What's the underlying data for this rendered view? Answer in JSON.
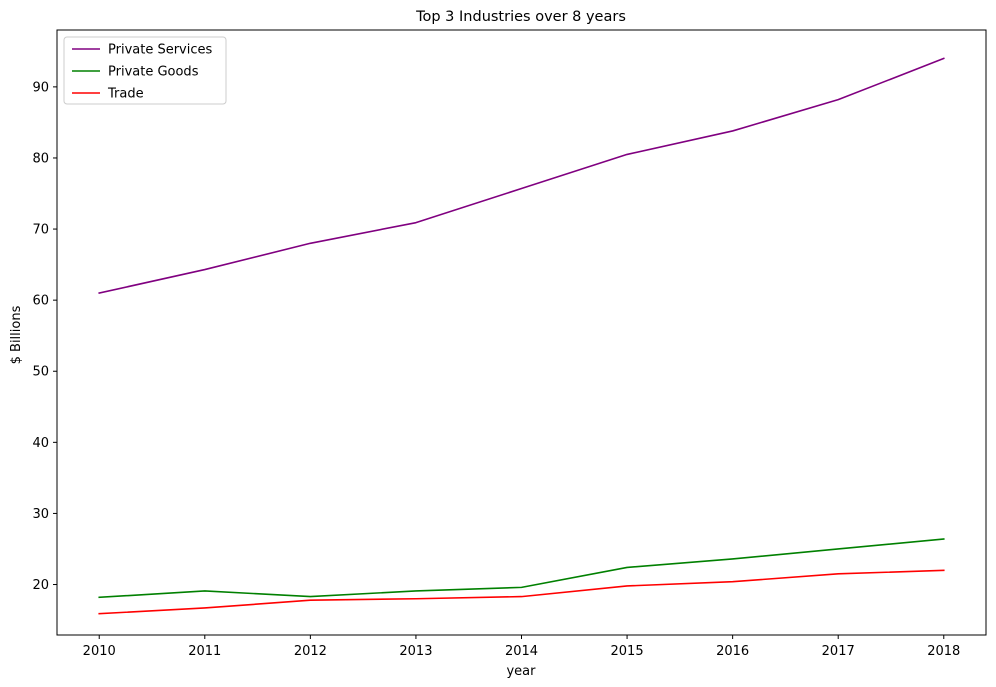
{
  "chart_data": {
    "type": "line",
    "title": "Top 3 Industries over 8 years",
    "xlabel": "year",
    "ylabel": "$ Billions",
    "x": [
      2010,
      2011,
      2012,
      2013,
      2014,
      2015,
      2016,
      2017,
      2018
    ],
    "x_ticks": [
      "2010",
      "2011",
      "2012",
      "2013",
      "2014",
      "2015",
      "2016",
      "2017",
      "2018"
    ],
    "y_ticks": [
      "20",
      "30",
      "40",
      "50",
      "60",
      "70",
      "80",
      "90"
    ],
    "xlim": [
      2009.6,
      2018.4
    ],
    "ylim": [
      12.9,
      98.0
    ],
    "grid": false,
    "legend_position": "top-left",
    "series": [
      {
        "name": "Private Services",
        "color": "#800080",
        "values": [
          61.0,
          64.3,
          68.0,
          70.9,
          75.7,
          80.5,
          83.8,
          88.2,
          94.0
        ]
      },
      {
        "name": "Private Goods",
        "color": "#008000",
        "values": [
          18.2,
          19.1,
          18.3,
          19.1,
          19.6,
          22.4,
          23.6,
          25.0,
          26.4
        ]
      },
      {
        "name": "Trade",
        "color": "#ff0000",
        "values": [
          15.9,
          16.7,
          17.8,
          18.0,
          18.3,
          19.8,
          20.4,
          21.5,
          22.0
        ]
      }
    ]
  }
}
